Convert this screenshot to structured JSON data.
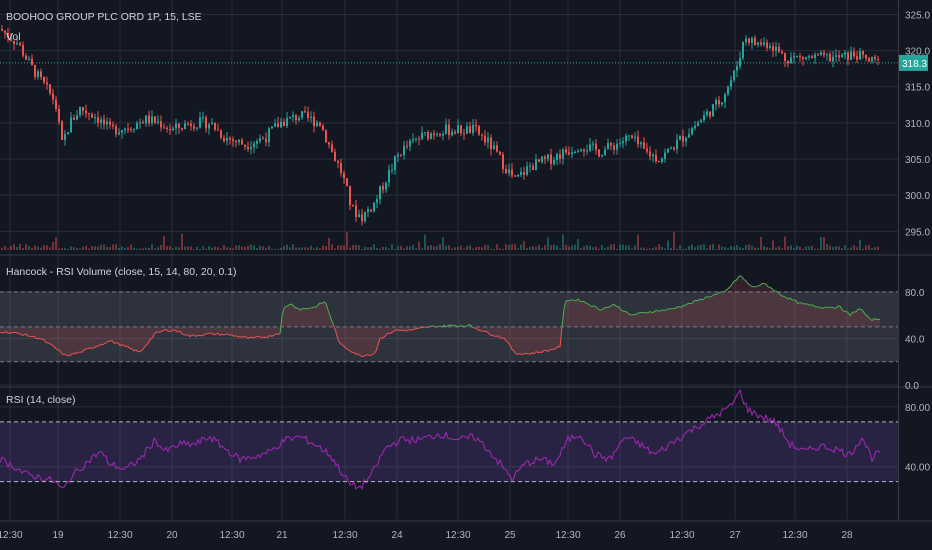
{
  "chart_data": [
    {
      "type": "candlestick",
      "title": "BOOHOO GROUP PLC ORD 1P, 15, LSE",
      "volume_label": "Vol",
      "last_price": "318.3",
      "y_ticks": [
        {
          "value": 295,
          "label": "295.0"
        },
        {
          "value": 300,
          "label": "300.0"
        },
        {
          "value": 305,
          "label": "305.0"
        },
        {
          "value": 310,
          "label": "310.0"
        },
        {
          "value": 315,
          "label": "315.0"
        },
        {
          "value": 320,
          "label": "320.0"
        },
        {
          "value": 325,
          "label": "325.0"
        }
      ],
      "ylim": [
        292,
        327
      ],
      "x_ticks": [
        "12:30",
        "19",
        "12:30",
        "20",
        "12:30",
        "21",
        "12:30",
        "24",
        "12:30",
        "25",
        "12:30",
        "26",
        "12:30",
        "27",
        "12:30",
        "28"
      ],
      "close_path": [
        {
          "x": 0,
          "y": 323
        },
        {
          "x": 18,
          "y": 321
        },
        {
          "x": 30,
          "y": 318
        },
        {
          "x": 45,
          "y": 315
        },
        {
          "x": 55,
          "y": 313
        },
        {
          "x": 62,
          "y": 307
        },
        {
          "x": 70,
          "y": 310
        },
        {
          "x": 80,
          "y": 312
        },
        {
          "x": 95,
          "y": 311
        },
        {
          "x": 110,
          "y": 309
        },
        {
          "x": 130,
          "y": 309.5
        },
        {
          "x": 145,
          "y": 310.5
        },
        {
          "x": 160,
          "y": 310
        },
        {
          "x": 172,
          "y": 309
        },
        {
          "x": 190,
          "y": 310
        },
        {
          "x": 210,
          "y": 310
        },
        {
          "x": 225,
          "y": 308
        },
        {
          "x": 245,
          "y": 307
        },
        {
          "x": 265,
          "y": 308
        },
        {
          "x": 280,
          "y": 310
        },
        {
          "x": 300,
          "y": 311
        },
        {
          "x": 320,
          "y": 310
        },
        {
          "x": 332,
          "y": 306
        },
        {
          "x": 342,
          "y": 303
        },
        {
          "x": 352,
          "y": 298
        },
        {
          "x": 362,
          "y": 297
        },
        {
          "x": 375,
          "y": 299
        },
        {
          "x": 385,
          "y": 302
        },
        {
          "x": 400,
          "y": 306
        },
        {
          "x": 420,
          "y": 308
        },
        {
          "x": 440,
          "y": 309
        },
        {
          "x": 460,
          "y": 309
        },
        {
          "x": 475,
          "y": 309
        },
        {
          "x": 490,
          "y": 307
        },
        {
          "x": 505,
          "y": 304
        },
        {
          "x": 515,
          "y": 302
        },
        {
          "x": 530,
          "y": 304
        },
        {
          "x": 550,
          "y": 305
        },
        {
          "x": 565,
          "y": 306
        },
        {
          "x": 580,
          "y": 307
        },
        {
          "x": 600,
          "y": 306
        },
        {
          "x": 615,
          "y": 307
        },
        {
          "x": 630,
          "y": 308
        },
        {
          "x": 645,
          "y": 306
        },
        {
          "x": 660,
          "y": 305
        },
        {
          "x": 675,
          "y": 307
        },
        {
          "x": 690,
          "y": 309
        },
        {
          "x": 705,
          "y": 311
        },
        {
          "x": 720,
          "y": 313
        },
        {
          "x": 735,
          "y": 317
        },
        {
          "x": 745,
          "y": 322
        },
        {
          "x": 755,
          "y": 321
        },
        {
          "x": 770,
          "y": 321
        },
        {
          "x": 785,
          "y": 319
        },
        {
          "x": 800,
          "y": 319
        },
        {
          "x": 820,
          "y": 319
        },
        {
          "x": 840,
          "y": 319
        },
        {
          "x": 855,
          "y": 319.5
        },
        {
          "x": 870,
          "y": 318.5
        },
        {
          "x": 880,
          "y": 318.3
        }
      ]
    },
    {
      "type": "line",
      "title": "Hancock - RSI Volume (close, 15, 14, 80, 20, 0.1)",
      "y_ticks": [
        {
          "value": 0,
          "label": "0.0"
        },
        {
          "value": 40,
          "label": "40.0"
        },
        {
          "value": 80,
          "label": "80.0"
        }
      ],
      "ylim": [
        0,
        110
      ],
      "levels": [
        80,
        50,
        20
      ],
      "series": [
        {
          "x": 0,
          "y": 46
        },
        {
          "x": 20,
          "y": 44
        },
        {
          "x": 40,
          "y": 40
        },
        {
          "x": 55,
          "y": 32
        },
        {
          "x": 65,
          "y": 25
        },
        {
          "x": 80,
          "y": 28
        },
        {
          "x": 95,
          "y": 33
        },
        {
          "x": 110,
          "y": 38
        },
        {
          "x": 125,
          "y": 33
        },
        {
          "x": 140,
          "y": 28
        },
        {
          "x": 155,
          "y": 44
        },
        {
          "x": 165,
          "y": 47
        },
        {
          "x": 175,
          "y": 47
        },
        {
          "x": 190,
          "y": 42
        },
        {
          "x": 210,
          "y": 44
        },
        {
          "x": 230,
          "y": 43
        },
        {
          "x": 250,
          "y": 40
        },
        {
          "x": 270,
          "y": 42
        },
        {
          "x": 280,
          "y": 45
        },
        {
          "x": 283,
          "y": 65
        },
        {
          "x": 290,
          "y": 70
        },
        {
          "x": 300,
          "y": 65
        },
        {
          "x": 315,
          "y": 67
        },
        {
          "x": 325,
          "y": 72
        },
        {
          "x": 332,
          "y": 55
        },
        {
          "x": 340,
          "y": 35
        },
        {
          "x": 350,
          "y": 30
        },
        {
          "x": 360,
          "y": 25
        },
        {
          "x": 375,
          "y": 27
        },
        {
          "x": 380,
          "y": 40
        },
        {
          "x": 395,
          "y": 47
        },
        {
          "x": 410,
          "y": 47
        },
        {
          "x": 430,
          "y": 50
        },
        {
          "x": 450,
          "y": 51
        },
        {
          "x": 470,
          "y": 51
        },
        {
          "x": 490,
          "y": 44
        },
        {
          "x": 505,
          "y": 40
        },
        {
          "x": 515,
          "y": 27
        },
        {
          "x": 530,
          "y": 27
        },
        {
          "x": 550,
          "y": 30
        },
        {
          "x": 560,
          "y": 33
        },
        {
          "x": 565,
          "y": 73
        },
        {
          "x": 580,
          "y": 73
        },
        {
          "x": 600,
          "y": 65
        },
        {
          "x": 615,
          "y": 69
        },
        {
          "x": 630,
          "y": 60
        },
        {
          "x": 650,
          "y": 63
        },
        {
          "x": 670,
          "y": 65
        },
        {
          "x": 690,
          "y": 70
        },
        {
          "x": 705,
          "y": 75
        },
        {
          "x": 725,
          "y": 80
        },
        {
          "x": 740,
          "y": 94
        },
        {
          "x": 752,
          "y": 84
        },
        {
          "x": 765,
          "y": 87
        },
        {
          "x": 780,
          "y": 78
        },
        {
          "x": 800,
          "y": 70
        },
        {
          "x": 820,
          "y": 67
        },
        {
          "x": 840,
          "y": 67
        },
        {
          "x": 850,
          "y": 60
        },
        {
          "x": 860,
          "y": 66
        },
        {
          "x": 870,
          "y": 56
        },
        {
          "x": 880,
          "y": 57
        }
      ]
    },
    {
      "type": "line",
      "title": "RSI (14, close)",
      "y_ticks": [
        {
          "value": 40,
          "label": "40.00"
        },
        {
          "value": 80,
          "label": "80.00"
        }
      ],
      "ylim": [
        5,
        92
      ],
      "levels": [
        70,
        30
      ],
      "series": [
        {
          "x": 0,
          "y": 45
        },
        {
          "x": 15,
          "y": 40
        },
        {
          "x": 25,
          "y": 35
        },
        {
          "x": 40,
          "y": 33
        },
        {
          "x": 55,
          "y": 30
        },
        {
          "x": 63,
          "y": 24
        },
        {
          "x": 72,
          "y": 34
        },
        {
          "x": 85,
          "y": 42
        },
        {
          "x": 100,
          "y": 50
        },
        {
          "x": 110,
          "y": 42
        },
        {
          "x": 125,
          "y": 38
        },
        {
          "x": 140,
          "y": 45
        },
        {
          "x": 155,
          "y": 58
        },
        {
          "x": 165,
          "y": 50
        },
        {
          "x": 180,
          "y": 55
        },
        {
          "x": 195,
          "y": 55
        },
        {
          "x": 210,
          "y": 60
        },
        {
          "x": 225,
          "y": 52
        },
        {
          "x": 240,
          "y": 45
        },
        {
          "x": 255,
          "y": 47
        },
        {
          "x": 270,
          "y": 50
        },
        {
          "x": 285,
          "y": 58
        },
        {
          "x": 300,
          "y": 60
        },
        {
          "x": 315,
          "y": 55
        },
        {
          "x": 330,
          "y": 48
        },
        {
          "x": 340,
          "y": 38
        },
        {
          "x": 350,
          "y": 28
        },
        {
          "x": 360,
          "y": 26
        },
        {
          "x": 372,
          "y": 35
        },
        {
          "x": 385,
          "y": 52
        },
        {
          "x": 400,
          "y": 58
        },
        {
          "x": 420,
          "y": 58
        },
        {
          "x": 440,
          "y": 62
        },
        {
          "x": 460,
          "y": 58
        },
        {
          "x": 475,
          "y": 60
        },
        {
          "x": 490,
          "y": 50
        },
        {
          "x": 500,
          "y": 42
        },
        {
          "x": 512,
          "y": 32
        },
        {
          "x": 525,
          "y": 42
        },
        {
          "x": 540,
          "y": 45
        },
        {
          "x": 555,
          "y": 42
        },
        {
          "x": 568,
          "y": 58
        },
        {
          "x": 580,
          "y": 62
        },
        {
          "x": 595,
          "y": 48
        },
        {
          "x": 610,
          "y": 45
        },
        {
          "x": 625,
          "y": 60
        },
        {
          "x": 640,
          "y": 55
        },
        {
          "x": 655,
          "y": 48
        },
        {
          "x": 670,
          "y": 55
        },
        {
          "x": 685,
          "y": 62
        },
        {
          "x": 700,
          "y": 68
        },
        {
          "x": 720,
          "y": 76
        },
        {
          "x": 730,
          "y": 80
        },
        {
          "x": 740,
          "y": 90
        },
        {
          "x": 748,
          "y": 78
        },
        {
          "x": 760,
          "y": 74
        },
        {
          "x": 775,
          "y": 70
        },
        {
          "x": 790,
          "y": 55
        },
        {
          "x": 805,
          "y": 50
        },
        {
          "x": 820,
          "y": 54
        },
        {
          "x": 835,
          "y": 52
        },
        {
          "x": 850,
          "y": 48
        },
        {
          "x": 862,
          "y": 60
        },
        {
          "x": 872,
          "y": 46
        },
        {
          "x": 880,
          "y": 50
        }
      ]
    }
  ]
}
